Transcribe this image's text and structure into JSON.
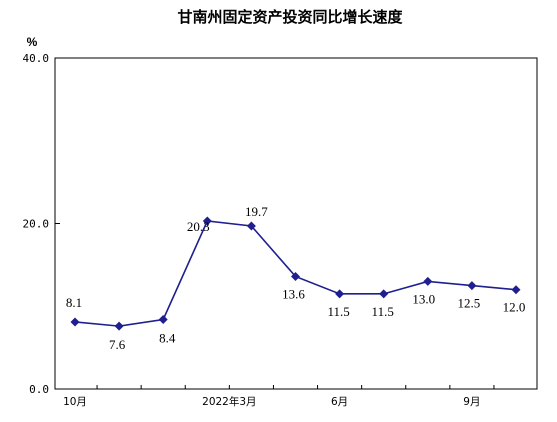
{
  "chart_data": {
    "type": "line",
    "title": "甘南州固定资产投资同比增长速度",
    "ylabel": "%",
    "ylim": [
      0,
      40
    ],
    "yticks": [
      "0.0",
      "20.0",
      "40.0"
    ],
    "x_tick_labels": [
      {
        "at": 0,
        "label": "10月"
      },
      {
        "at": 3.5,
        "label": "2022年3月"
      },
      {
        "at": 6,
        "label": "6月"
      },
      {
        "at": 9,
        "label": "9月"
      }
    ],
    "series": [
      {
        "color": "#1f1f8f",
        "marker": "diamond",
        "values": [
          8.1,
          7.6,
          8.4,
          20.3,
          19.7,
          13.6,
          11.5,
          11.5,
          13.0,
          12.5,
          12.0
        ],
        "labels": [
          "8.1",
          "7.6",
          "8.4",
          "20.3",
          "19.7",
          "13.6",
          "11.5",
          "11.5",
          "13.0",
          "12.5",
          "12.0"
        ]
      }
    ],
    "grid": false,
    "legend": "none"
  }
}
